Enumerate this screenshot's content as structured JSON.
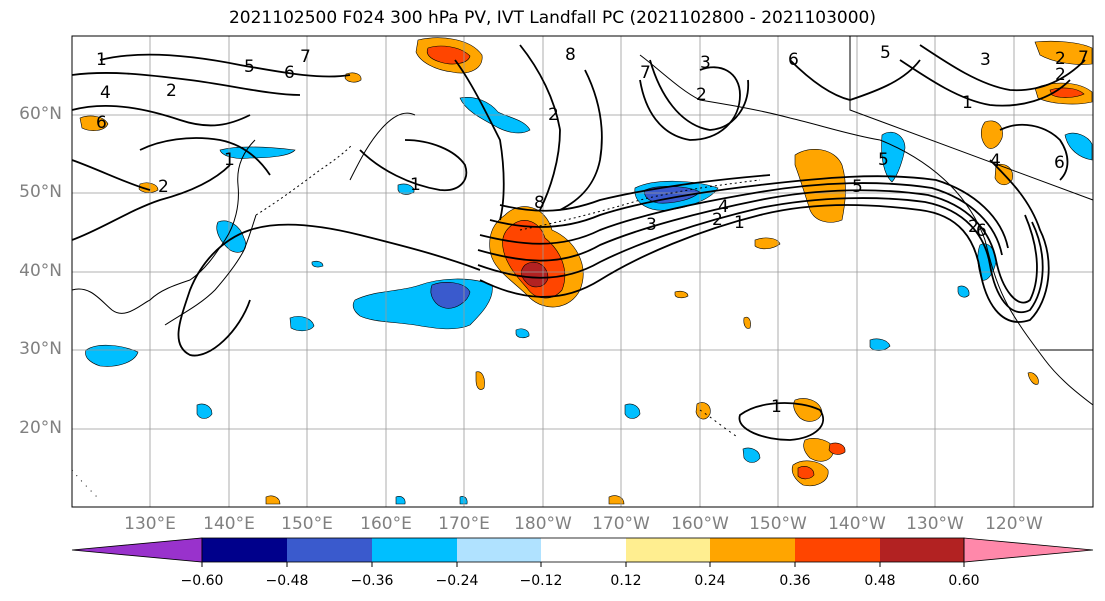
{
  "title": "2021102500 F024 300 hPa PV, IVT Landfall PC (2021102800 - 2021103000)",
  "lat_labels": [
    "60°N",
    "50°N",
    "40°N",
    "30°N",
    "20°N"
  ],
  "lon_labels": [
    "130°E",
    "140°E",
    "150°E",
    "160°E",
    "170°E",
    "180°W",
    "170°W",
    "160°W",
    "150°W",
    "140°W",
    "130°W",
    "120°W"
  ],
  "contour_labels": [
    "1",
    "2",
    "4",
    "6",
    "5",
    "6",
    "7",
    "1",
    "2",
    "8",
    "2",
    "6",
    "7",
    "5",
    "5",
    "3",
    "2",
    "2",
    "5",
    "3",
    "2",
    "1",
    "4",
    "8",
    "3",
    "2",
    "1",
    "1",
    "4",
    "6",
    "2",
    "6",
    "7",
    "1"
  ],
  "colorbar": {
    "colors": [
      "#9932cc",
      "#00008b",
      "#3a5acd",
      "#00bfff",
      "#b0e2ff",
      "#ffffff",
      "#ffee90",
      "#ffa500",
      "#ff4500",
      "#b22222",
      "#ff88aa"
    ],
    "tick_labels": [
      "−0.60",
      "−0.48",
      "−0.36",
      "−0.24",
      "−0.12",
      "0.12",
      "0.24",
      "0.36",
      "0.48",
      "0.60"
    ]
  }
}
